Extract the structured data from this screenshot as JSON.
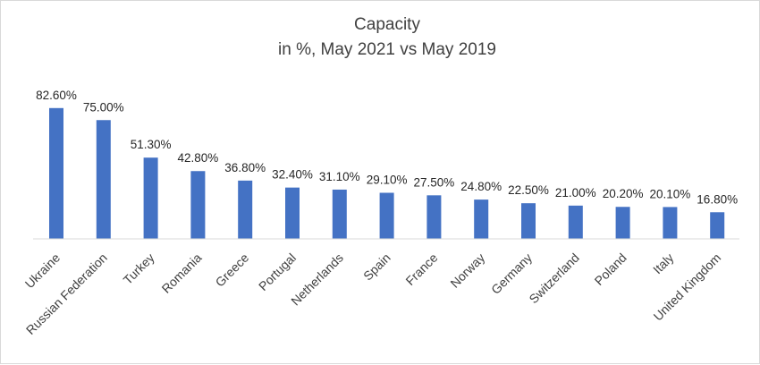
{
  "chart_data": {
    "type": "bar",
    "title": "Capacity",
    "subtitle": "in %, May 2021 vs May 2019",
    "categories": [
      "Ukraine",
      "Russian Federation",
      "Turkey",
      "Romania",
      "Greece",
      "Portugal",
      "Netherlands",
      "Spain",
      "France",
      "Norway",
      "Germany",
      "Switzerland",
      "Poland",
      "Italy",
      "United Kingdom"
    ],
    "values": [
      82.6,
      75.0,
      51.3,
      42.8,
      36.8,
      32.4,
      31.1,
      29.1,
      27.5,
      24.8,
      22.5,
      21.0,
      20.2,
      20.1,
      16.8
    ],
    "data_labels": [
      "82.60%",
      "75.00%",
      "51.30%",
      "42.80%",
      "36.80%",
      "32.40%",
      "31.10%",
      "29.10%",
      "27.50%",
      "24.80%",
      "22.50%",
      "21.00%",
      "20.20%",
      "20.10%",
      "16.80%"
    ],
    "ylim": [
      0,
      90
    ],
    "xlabel": "",
    "ylabel": "",
    "grid": false,
    "legend": "none",
    "colors": {
      "bar": "#4472c4",
      "axis": "#d9d9d9",
      "text": "#404040"
    }
  }
}
